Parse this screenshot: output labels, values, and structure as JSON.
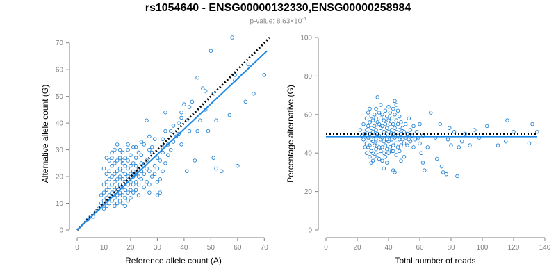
{
  "header": {
    "title": "rs1054640 - ENSG00000132330,ENSG00000258984",
    "subtitle_prefix": "p-value: 8.63×10",
    "subtitle_exponent": "-4"
  },
  "colors": {
    "points": "#1f7fd1",
    "fit_line": "#1e88e5",
    "reference_line": "#000000",
    "axis": "#7f7f7f",
    "tick_label": "#7f7f7f"
  },
  "chart_data": [
    {
      "type": "scatter",
      "xlabel": "Reference allele count (A)",
      "ylabel": "Alternative allele count (G)",
      "xlim": [
        0,
        72
      ],
      "ylim": [
        0,
        72
      ],
      "xticks": [
        0,
        10,
        20,
        30,
        40,
        50,
        60,
        70
      ],
      "yticks": [
        0,
        10,
        20,
        30,
        40,
        50,
        60,
        70
      ],
      "grid": false,
      "lines": [
        {
          "style": "dotted",
          "color": "#000000",
          "x": [
            0,
            72
          ],
          "y": [
            0,
            72
          ]
        },
        {
          "style": "solid",
          "color": "#1e88e5",
          "x": [
            0,
            71
          ],
          "y": [
            0,
            67
          ]
        }
      ],
      "points": [
        [
          70,
          58
        ],
        [
          66,
          51
        ],
        [
          64,
          62
        ],
        [
          63,
          48
        ],
        [
          60,
          24
        ],
        [
          59,
          56
        ],
        [
          59,
          58
        ],
        [
          58,
          72
        ],
        [
          57,
          43
        ],
        [
          54,
          22
        ],
        [
          52,
          23
        ],
        [
          52,
          41
        ],
        [
          51,
          51
        ],
        [
          51,
          27
        ],
        [
          50,
          67
        ],
        [
          49,
          37
        ],
        [
          48,
          45
        ],
        [
          47,
          53
        ],
        [
          46,
          41
        ],
        [
          45,
          37
        ],
        [
          48,
          52
        ],
        [
          45,
          57
        ],
        [
          44,
          26
        ],
        [
          43,
          48
        ],
        [
          42,
          46
        ],
        [
          42,
          37
        ],
        [
          41,
          22
        ],
        [
          41,
          41
        ],
        [
          40,
          47
        ],
        [
          39,
          44
        ],
        [
          39,
          42
        ],
        [
          38,
          40
        ],
        [
          37,
          35
        ],
        [
          36,
          33
        ],
        [
          35,
          30
        ],
        [
          35,
          37
        ],
        [
          34,
          32
        ],
        [
          34,
          28
        ],
        [
          33,
          25
        ],
        [
          33,
          44
        ],
        [
          32,
          29
        ],
        [
          32,
          22
        ],
        [
          32,
          31
        ],
        [
          32,
          34
        ],
        [
          31,
          26
        ],
        [
          31,
          19
        ],
        [
          31,
          14
        ],
        [
          30,
          23
        ],
        [
          30,
          27
        ],
        [
          30,
          18
        ],
        [
          30,
          13
        ],
        [
          29,
          34
        ],
        [
          29,
          24
        ],
        [
          29,
          21
        ],
        [
          28,
          31
        ],
        [
          28,
          29
        ],
        [
          28,
          20
        ],
        [
          27,
          30
        ],
        [
          27,
          22
        ],
        [
          27,
          17
        ],
        [
          27,
          14
        ],
        [
          26,
          41
        ],
        [
          26,
          26
        ],
        [
          26,
          23
        ],
        [
          26,
          18
        ],
        [
          25,
          32
        ],
        [
          25,
          24
        ],
        [
          25,
          21
        ],
        [
          25,
          16
        ],
        [
          24,
          28
        ],
        [
          24,
          25
        ],
        [
          24,
          22
        ],
        [
          24,
          19
        ],
        [
          23,
          29
        ],
        [
          23,
          23
        ],
        [
          23,
          20
        ],
        [
          23,
          17
        ],
        [
          23,
          13
        ],
        [
          22,
          31
        ],
        [
          22,
          27
        ],
        [
          22,
          24
        ],
        [
          22,
          21
        ],
        [
          22,
          18
        ],
        [
          22,
          15
        ],
        [
          21,
          25
        ],
        [
          21,
          22
        ],
        [
          21,
          20
        ],
        [
          21,
          17
        ],
        [
          21,
          14
        ],
        [
          20,
          28
        ],
        [
          20,
          24
        ],
        [
          20,
          21
        ],
        [
          20,
          18
        ],
        [
          20,
          15
        ],
        [
          20,
          12
        ],
        [
          19,
          32
        ],
        [
          19,
          26
        ],
        [
          19,
          23
        ],
        [
          19,
          20
        ],
        [
          19,
          17
        ],
        [
          19,
          14
        ],
        [
          19,
          11
        ],
        [
          18,
          27
        ],
        [
          18,
          24
        ],
        [
          18,
          21
        ],
        [
          18,
          18
        ],
        [
          18,
          15
        ],
        [
          18,
          12
        ],
        [
          18,
          9
        ],
        [
          17,
          29
        ],
        [
          17,
          25
        ],
        [
          17,
          22
        ],
        [
          17,
          19
        ],
        [
          17,
          16
        ],
        [
          17,
          13
        ],
        [
          17,
          10
        ],
        [
          16,
          30
        ],
        [
          16,
          27
        ],
        [
          16,
          23
        ],
        [
          16,
          20
        ],
        [
          16,
          17
        ],
        [
          16,
          14
        ],
        [
          16,
          11
        ],
        [
          15,
          32
        ],
        [
          15,
          26
        ],
        [
          15,
          22
        ],
        [
          15,
          19
        ],
        [
          15,
          16
        ],
        [
          15,
          13
        ],
        [
          15,
          10
        ],
        [
          14,
          30
        ],
        [
          14,
          25
        ],
        [
          14,
          21
        ],
        [
          14,
          18
        ],
        [
          14,
          15
        ],
        [
          14,
          12
        ],
        [
          14,
          9
        ],
        [
          13,
          29
        ],
        [
          13,
          24
        ],
        [
          13,
          20
        ],
        [
          13,
          17
        ],
        [
          13,
          14
        ],
        [
          13,
          11
        ],
        [
          12,
          26
        ],
        [
          12,
          22
        ],
        [
          12,
          19
        ],
        [
          12,
          16
        ],
        [
          12,
          13
        ],
        [
          12,
          10
        ],
        [
          11,
          21
        ],
        [
          11,
          18
        ],
        [
          11,
          15
        ],
        [
          11,
          12
        ],
        [
          11,
          9
        ],
        [
          10,
          23
        ],
        [
          10,
          17
        ],
        [
          10,
          14
        ],
        [
          10,
          11
        ],
        [
          10,
          8
        ],
        [
          9,
          13
        ],
        [
          9,
          10
        ],
        [
          8,
          8
        ],
        [
          7,
          7
        ],
        [
          6,
          5
        ],
        [
          5,
          5
        ],
        [
          4,
          4
        ],
        [
          21,
          31
        ],
        [
          24,
          33
        ],
        [
          27,
          35
        ],
        [
          33,
          37
        ],
        [
          36,
          39
        ],
        [
          38,
          36
        ],
        [
          39,
          32
        ],
        [
          17,
          26
        ],
        [
          13,
          27
        ],
        [
          19,
          30
        ],
        [
          11,
          27
        ]
      ]
    },
    {
      "type": "scatter",
      "xlabel": "Total number of reads",
      "ylabel": "Percentage alternative (G)",
      "xlim": [
        0,
        140
      ],
      "ylim": [
        0,
        100
      ],
      "xticks": [
        0,
        20,
        40,
        60,
        80,
        100,
        120,
        140
      ],
      "yticks": [
        0,
        20,
        40,
        60,
        80,
        100
      ],
      "grid": false,
      "lines": [
        {
          "style": "dotted",
          "color": "#000000",
          "x": [
            0,
            135
          ],
          "y": [
            50,
            50
          ]
        },
        {
          "style": "solid",
          "color": "#1e88e5",
          "x": [
            0,
            135
          ],
          "y": [
            48.5,
            48.5
          ]
        }
      ],
      "points": [
        [
          22,
          52
        ],
        [
          23,
          49
        ],
        [
          24,
          55
        ],
        [
          24,
          47
        ],
        [
          25,
          50
        ],
        [
          25,
          43
        ],
        [
          26,
          58
        ],
        [
          26,
          52
        ],
        [
          26,
          45
        ],
        [
          26,
          40
        ],
        [
          27,
          61
        ],
        [
          27,
          54
        ],
        [
          27,
          48
        ],
        [
          27,
          43
        ],
        [
          28,
          63
        ],
        [
          28,
          56
        ],
        [
          28,
          50
        ],
        [
          28,
          44
        ],
        [
          28,
          38
        ],
        [
          29,
          59
        ],
        [
          29,
          53
        ],
        [
          29,
          47
        ],
        [
          29,
          41
        ],
        [
          29,
          35
        ],
        [
          30,
          57
        ],
        [
          30,
          51
        ],
        [
          30,
          46
        ],
        [
          30,
          40
        ],
        [
          30,
          36
        ],
        [
          31,
          60
        ],
        [
          31,
          54
        ],
        [
          31,
          49
        ],
        [
          31,
          44
        ],
        [
          31,
          38
        ],
        [
          32,
          63
        ],
        [
          32,
          58
        ],
        [
          32,
          52
        ],
        [
          32,
          47
        ],
        [
          32,
          42
        ],
        [
          33,
          69
        ],
        [
          33,
          56
        ],
        [
          33,
          50
        ],
        [
          33,
          45
        ],
        [
          33,
          39
        ],
        [
          34,
          61
        ],
        [
          34,
          55
        ],
        [
          34,
          49
        ],
        [
          34,
          43
        ],
        [
          34,
          37
        ],
        [
          35,
          65
        ],
        [
          35,
          58
        ],
        [
          35,
          53
        ],
        [
          35,
          47
        ],
        [
          35,
          41
        ],
        [
          36,
          60
        ],
        [
          36,
          54
        ],
        [
          36,
          48
        ],
        [
          36,
          43
        ],
        [
          36,
          36
        ],
        [
          37,
          57
        ],
        [
          37,
          51
        ],
        [
          37,
          46
        ],
        [
          37,
          40
        ],
        [
          38,
          62
        ],
        [
          38,
          55
        ],
        [
          38,
          49
        ],
        [
          38,
          44
        ],
        [
          38,
          38
        ],
        [
          39,
          59
        ],
        [
          39,
          53
        ],
        [
          39,
          47
        ],
        [
          39,
          42
        ],
        [
          40,
          64
        ],
        [
          40,
          57
        ],
        [
          40,
          51
        ],
        [
          40,
          46
        ],
        [
          40,
          40
        ],
        [
          41,
          61
        ],
        [
          41,
          55
        ],
        [
          41,
          49
        ],
        [
          41,
          43
        ],
        [
          42,
          58
        ],
        [
          42,
          52
        ],
        [
          42,
          47
        ],
        [
          42,
          41
        ],
        [
          43,
          31
        ],
        [
          43,
          63
        ],
        [
          43,
          55
        ],
        [
          43,
          50
        ],
        [
          43,
          44
        ],
        [
          44,
          67
        ],
        [
          44,
          60
        ],
        [
          44,
          53
        ],
        [
          44,
          48
        ],
        [
          44,
          30
        ],
        [
          45,
          65
        ],
        [
          45,
          57
        ],
        [
          45,
          51
        ],
        [
          45,
          45
        ],
        [
          45,
          39
        ],
        [
          46,
          62
        ],
        [
          46,
          55
        ],
        [
          46,
          49
        ],
        [
          46,
          43
        ],
        [
          47,
          59
        ],
        [
          47,
          52
        ],
        [
          47,
          47
        ],
        [
          47,
          41
        ],
        [
          48,
          56
        ],
        [
          48,
          50
        ],
        [
          48,
          44
        ],
        [
          49,
          53
        ],
        [
          49,
          47
        ],
        [
          50,
          51
        ],
        [
          50,
          45
        ],
        [
          51,
          55
        ],
        [
          51,
          48
        ],
        [
          52,
          50
        ],
        [
          52,
          44
        ],
        [
          53,
          58
        ],
        [
          53,
          47
        ],
        [
          54,
          52
        ],
        [
          54,
          46
        ],
        [
          55,
          49
        ],
        [
          56,
          54
        ],
        [
          56,
          43
        ],
        [
          57,
          47
        ],
        [
          58,
          51
        ],
        [
          59,
          48
        ],
        [
          60,
          45
        ],
        [
          60,
          55
        ],
        [
          61,
          40
        ],
        [
          62,
          35
        ],
        [
          62,
          49
        ],
        [
          63,
          31
        ],
        [
          65,
          43
        ],
        [
          67,
          61
        ],
        [
          70,
          48
        ],
        [
          71,
          37
        ],
        [
          73,
          55
        ],
        [
          74,
          33
        ],
        [
          75,
          30
        ],
        [
          77,
          29
        ],
        [
          78,
          47
        ],
        [
          79,
          53
        ],
        [
          80,
          44
        ],
        [
          82,
          51
        ],
        [
          84,
          28
        ],
        [
          85,
          43
        ],
        [
          87,
          46
        ],
        [
          89,
          50
        ],
        [
          92,
          44
        ],
        [
          95,
          52
        ],
        [
          98,
          48
        ],
        [
          103,
          54
        ],
        [
          110,
          44
        ],
        [
          115,
          46
        ],
        [
          116,
          57
        ],
        [
          120,
          51
        ],
        [
          130,
          45
        ],
        [
          132,
          55
        ],
        [
          135,
          51
        ],
        [
          48,
          36
        ],
        [
          39,
          35
        ],
        [
          37,
          32
        ],
        [
          43,
          41
        ],
        [
          50,
          38
        ]
      ]
    }
  ]
}
